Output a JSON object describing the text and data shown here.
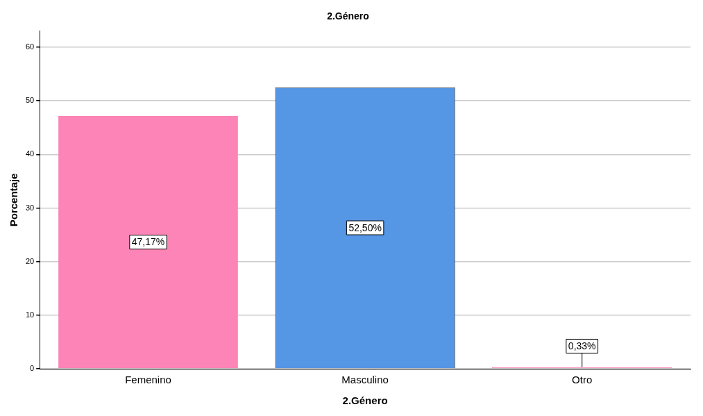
{
  "chart_data": {
    "type": "bar",
    "title": "2.Género",
    "xlabel": "2.Género",
    "ylabel": "Porcentaje",
    "categories": [
      "Femenino",
      "Masculino",
      "Otro"
    ],
    "values": [
      47.17,
      52.5,
      0.33
    ],
    "colors": [
      "#fd84b6",
      "#5596e5",
      "#fd84b6"
    ],
    "value_labels": [
      "47,17%",
      "52,50%",
      "0,33%"
    ],
    "ylim": [
      0,
      63
    ],
    "yticks": [
      0,
      10,
      20,
      30,
      40,
      50,
      60
    ],
    "grid": "y",
    "legend": false
  }
}
